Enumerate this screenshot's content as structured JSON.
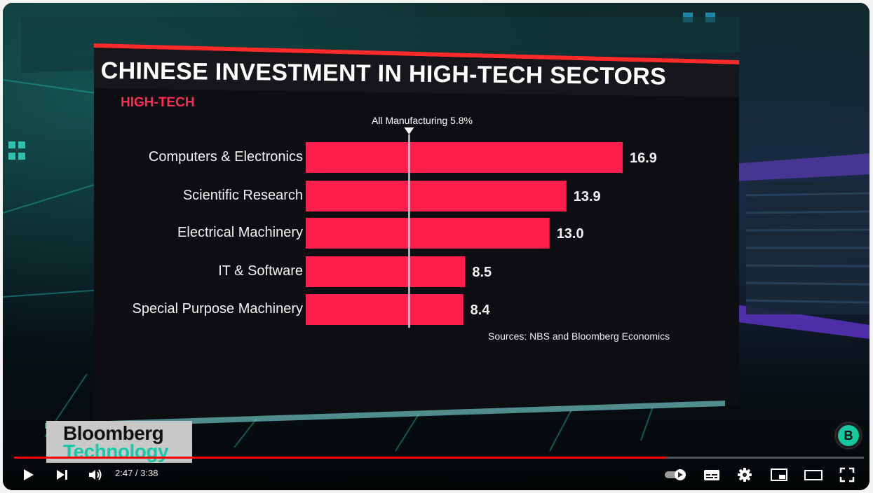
{
  "video": {
    "time_display": "2:47 / 3:38",
    "progress_fraction": 0.7661,
    "accent_color": "#ff0000"
  },
  "logo": {
    "line1": "Bloomberg",
    "line2": "Technology"
  },
  "channel": {
    "badge_letter": "B"
  },
  "controls": {
    "icons": [
      "play-icon",
      "next-icon",
      "volume-icon",
      "autoplay-toggle-icon",
      "subtitles-icon",
      "settings-gear-icon",
      "miniplayer-icon",
      "theater-mode-icon",
      "fullscreen-icon"
    ]
  },
  "chart_data": {
    "type": "bar",
    "orientation": "horizontal",
    "title": "CHINESE INVESTMENT IN HIGH-TECH SECTORS",
    "subtitle": "HIGH-TECH",
    "categories": [
      "Computers & Electronics",
      "Scientific Research",
      "Electrical Machinery",
      "IT & Software",
      "Special Purpose Machinery"
    ],
    "values": [
      16.9,
      13.9,
      13.0,
      8.5,
      8.4
    ],
    "value_labels": [
      "16.9",
      "13.9",
      "13.0",
      "8.5",
      "8.4"
    ],
    "reference_line": {
      "label": "All Manufacturing 5.8%",
      "value": 5.8
    },
    "source": "Sources: NBS and Bloomberg Economics",
    "bar_color": "#ff1f4f",
    "xlim": [
      0,
      16.9
    ]
  }
}
